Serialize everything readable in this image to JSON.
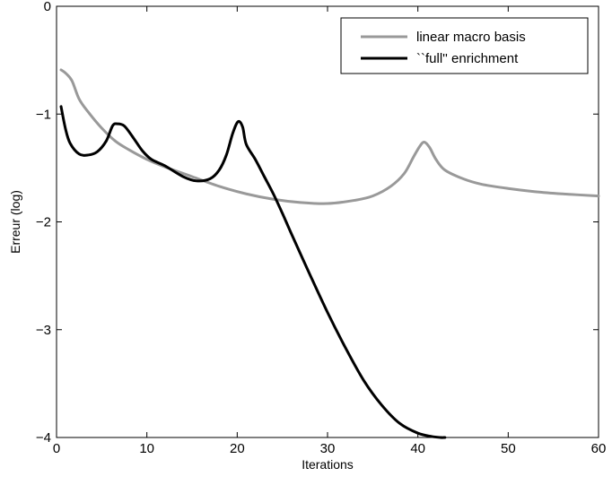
{
  "chart_data": {
    "type": "line",
    "xlabel": "Iterations",
    "ylabel": "Erreur (log)",
    "xlim": [
      0,
      60
    ],
    "ylim": [
      -4,
      0
    ],
    "xticks": [
      0,
      10,
      20,
      30,
      40,
      50,
      60
    ],
    "yticks": [
      0,
      -1,
      -2,
      -3,
      -4
    ],
    "xtick_labels": [
      "0",
      "10",
      "20",
      "30",
      "40",
      "50",
      "60"
    ],
    "ytick_labels": [
      "0",
      "−1",
      "−2",
      "−3",
      "−4"
    ],
    "grid": false,
    "legend_position": "top-right",
    "series": [
      {
        "name": "linear macro basis",
        "color": "#999999",
        "x": [
          0.5,
          1,
          1.7,
          2.5,
          3.5,
          5,
          6.5,
          8,
          10,
          12,
          15,
          18,
          21,
          24,
          27,
          30,
          33,
          35,
          37,
          38.5,
          39.5,
          40.2,
          40.7,
          41.3,
          42,
          43,
          45,
          47,
          50,
          53,
          56,
          60
        ],
        "y": [
          -0.59,
          -0.62,
          -0.69,
          -0.86,
          -0.98,
          -1.13,
          -1.25,
          -1.33,
          -1.42,
          -1.49,
          -1.58,
          -1.67,
          -1.74,
          -1.79,
          -1.82,
          -1.83,
          -1.8,
          -1.76,
          -1.67,
          -1.55,
          -1.4,
          -1.3,
          -1.26,
          -1.31,
          -1.42,
          -1.52,
          -1.6,
          -1.65,
          -1.69,
          -1.72,
          -1.74,
          -1.76
        ]
      },
      {
        "name": "``full'' enrichment",
        "color": "#000000",
        "x": [
          0.5,
          1,
          1.5,
          2.5,
          3.5,
          4.5,
          5.5,
          6.2,
          6.7,
          7.5,
          8.5,
          9.5,
          10.5,
          12,
          14,
          15.5,
          17,
          18,
          18.8,
          19.5,
          20.1,
          20.6,
          21,
          22,
          23,
          24,
          25,
          26,
          28,
          30,
          32,
          34,
          36,
          38,
          40,
          41.5,
          42.5,
          43
        ],
        "y": [
          -0.93,
          -1.14,
          -1.27,
          -1.37,
          -1.38,
          -1.35,
          -1.25,
          -1.11,
          -1.09,
          -1.11,
          -1.22,
          -1.34,
          -1.42,
          -1.48,
          -1.58,
          -1.62,
          -1.6,
          -1.52,
          -1.38,
          -1.18,
          -1.07,
          -1.12,
          -1.28,
          -1.42,
          -1.58,
          -1.74,
          -1.92,
          -2.11,
          -2.48,
          -2.84,
          -3.17,
          -3.47,
          -3.7,
          -3.87,
          -3.96,
          -3.99,
          -4.0,
          -4.0
        ]
      }
    ]
  }
}
